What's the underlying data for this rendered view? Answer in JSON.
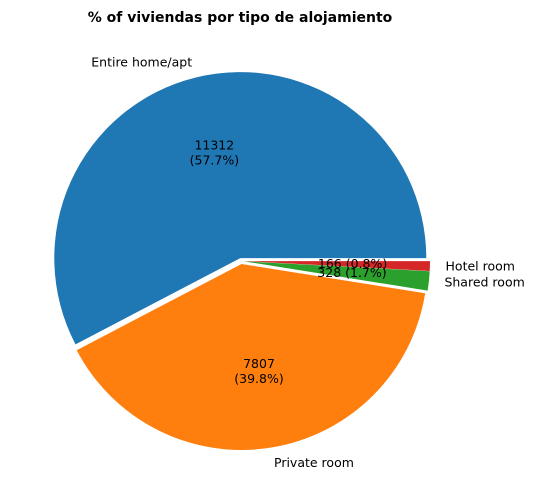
{
  "chart_data": {
    "type": "pie",
    "title": "% of viviendas por tipo de alojamiento",
    "slices": [
      {
        "label": "Entire home/apt",
        "value": 11312,
        "percent_label": "(57.7%)",
        "color": "#1f77b4",
        "data_label": "11312",
        "layout": "stacked"
      },
      {
        "label": "Private room",
        "value": 7807,
        "percent_label": "(39.8%)",
        "color": "#ff7f0e",
        "data_label": "7807",
        "layout": "stacked"
      },
      {
        "label": "Shared room",
        "value": 328,
        "percent_label": "(1.7%)",
        "color": "#2ca02c",
        "data_label": "328",
        "layout": "inline"
      },
      {
        "label": "Hotel room",
        "value": 166,
        "percent_label": "(0.8%)",
        "color": "#d62728",
        "data_label": "166",
        "layout": "inline"
      }
    ]
  }
}
